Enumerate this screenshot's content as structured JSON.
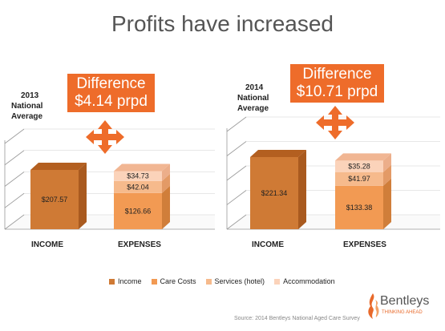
{
  "title": "Profits have increased",
  "colors": {
    "income_front": "#cf7a35",
    "income_top": "#b35f20",
    "income_side": "#a95a1f",
    "care_front": "#f29a53",
    "services_front": "#f6ba8c",
    "accommodation_front": "#fbd3ba",
    "accent": "#ee6c2a",
    "grid": "#999999",
    "panel_bg": "#f2f2f2"
  },
  "chart_data": [
    {
      "type": "bar",
      "subtype": "stacked-3d",
      "average_label": [
        "2013",
        "National",
        "Average"
      ],
      "difference": {
        "label": "Difference",
        "value": "$4.14 prpd"
      },
      "categories": [
        "INCOME",
        "EXPENSES"
      ],
      "series": [
        {
          "name": "Income",
          "values": [
            207.57,
            0
          ],
          "labels": [
            "$207.57",
            ""
          ]
        },
        {
          "name": "Care Costs",
          "values": [
            0,
            126.66
          ],
          "labels": [
            "",
            "$126.66"
          ]
        },
        {
          "name": "Services (hotel)",
          "values": [
            0,
            42.04
          ],
          "labels": [
            "",
            "$42.04"
          ]
        },
        {
          "name": "Accommodation",
          "values": [
            0,
            34.73
          ],
          "labels": [
            "",
            "$34.73"
          ]
        }
      ],
      "ylim": [
        0,
        300
      ],
      "grid": true
    },
    {
      "type": "bar",
      "subtype": "stacked-3d",
      "average_label": [
        "2014",
        "National",
        "Average"
      ],
      "difference": {
        "label": "Difference",
        "value": "$10.71 prpd"
      },
      "categories": [
        "INCOME",
        "EXPENSES"
      ],
      "series": [
        {
          "name": "Income",
          "values": [
            221.34,
            0
          ],
          "labels": [
            "$221.34",
            ""
          ]
        },
        {
          "name": "Care Costs",
          "values": [
            0,
            133.38
          ],
          "labels": [
            "",
            "$133.38"
          ]
        },
        {
          "name": "Services (hotel)",
          "values": [
            0,
            41.97
          ],
          "labels": [
            "",
            "$41.97"
          ]
        },
        {
          "name": "Accommodation",
          "values": [
            0,
            35.28
          ],
          "labels": [
            "",
            "$35.28"
          ]
        }
      ],
      "ylim": [
        0,
        300
      ],
      "grid": true
    }
  ],
  "legend": [
    "Income",
    "Care Costs",
    "Services (hotel)",
    "Accommodation"
  ],
  "source": "Source: 2014 Bentleys National Aged Care Survey",
  "logo": {
    "name": "Bentleys",
    "tagline": "THINKING AHEAD"
  }
}
